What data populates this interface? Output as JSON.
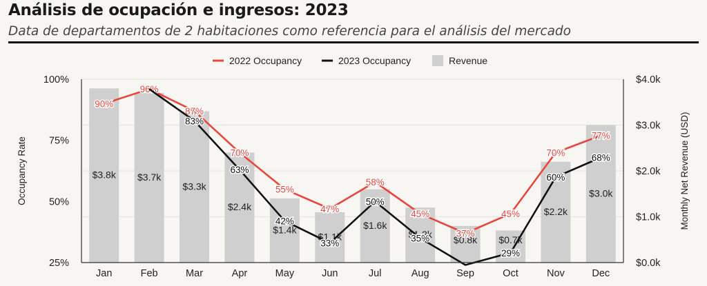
{
  "title": "Análisis de ocupación e ingresos: 2023",
  "subtitle": "Data de departamentos de 2 habitaciones como referencia para el análisis del mercado",
  "colors": {
    "occ2022": "#e8453c",
    "occ2023": "#111111",
    "revenue": "#cfcfcf"
  },
  "chart_data": {
    "type": "bar",
    "categories": [
      "Jan",
      "Feb",
      "Mar",
      "Apr",
      "May",
      "Jun",
      "Jul",
      "Aug",
      "Sep",
      "Oct",
      "Nov",
      "Dec"
    ],
    "legend": [
      "2022 Occupancy",
      "2023 Occupancy",
      "Revenue"
    ],
    "legend_position": "top-center",
    "ylabel_left": "Occupancy Rate",
    "ylabel_right": "Monthly Net Revenue (USD)",
    "ylim_left": [
      25,
      100
    ],
    "ylim_right": [
      0,
      4000
    ],
    "left_ticks": [
      "25%",
      "50%",
      "75%",
      "100%"
    ],
    "right_ticks": [
      "$0.0k",
      "$1.0k",
      "$2.0k",
      "$3.0k",
      "$4.0k"
    ],
    "series": [
      {
        "name": "Revenue",
        "type": "bar",
        "values": [
          3800,
          3700,
          3300,
          2400,
          1400,
          1100,
          1600,
          1200,
          800,
          700,
          2200,
          3000
        ],
        "labels": [
          "$3.8k",
          "$3.7k",
          "$3.3k",
          "$2.4k",
          "$1.4k",
          "$1.1k",
          "$1.6k",
          "$1.2k",
          "$0.8k",
          "$0.7k",
          "$2.2k",
          "$3.0k"
        ]
      },
      {
        "name": "2022 Occupancy",
        "type": "line",
        "values": [
          90,
          96,
          87,
          70,
          55,
          47,
          58,
          45,
          37,
          45,
          70,
          77
        ],
        "labels": [
          "90%",
          "96%",
          "87%",
          "70%",
          "55%",
          "47%",
          "58%",
          "45%",
          "37%",
          "45%",
          "70%",
          "77%"
        ]
      },
      {
        "name": "2023 Occupancy",
        "type": "line",
        "values": [
          null,
          96,
          83,
          63,
          42,
          33,
          50,
          35,
          24,
          29,
          60,
          68
        ],
        "labels": [
          null,
          null,
          "83%",
          "63%",
          "42%",
          "33%",
          "50%",
          "35%",
          null,
          "29%",
          "60%",
          "68%"
        ]
      }
    ]
  }
}
